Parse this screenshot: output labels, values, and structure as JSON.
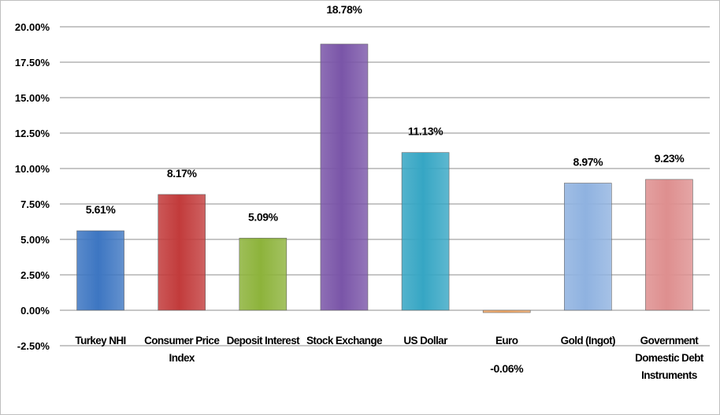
{
  "chart_data": {
    "type": "bar",
    "title": "",
    "xlabel": "",
    "ylabel": "",
    "categories": [
      [
        "Turkey NHI"
      ],
      [
        "Consumer Price",
        "Index"
      ],
      [
        "Deposit Interest"
      ],
      [
        "Stock Exchange"
      ],
      [
        "US Dollar"
      ],
      [
        "Euro"
      ],
      [
        "Gold (Ingot)"
      ],
      [
        "Government",
        "Domestic Debt",
        "Instruments"
      ]
    ],
    "values": [
      5.61,
      8.17,
      5.09,
      18.78,
      11.13,
      -0.06,
      8.97,
      9.23
    ],
    "data_labels": [
      "5.61%",
      "8.17%",
      "5.09%",
      "18.78%",
      "11.13%",
      "-0.06%",
      "8.97%",
      "9.23%"
    ],
    "ylim": [
      -2.5,
      20
    ],
    "y_ticks": [
      "20.00%",
      "17.50%",
      "15.00%",
      "12.50%",
      "10.00%",
      "7.50%",
      "5.00%",
      "2.50%",
      "0.00%",
      "-2.50%"
    ],
    "y_tick_values": [
      20,
      17.5,
      15,
      12.5,
      10,
      7.5,
      5,
      2.5,
      0,
      -2.5
    ],
    "grid": true,
    "legend": "none",
    "colors": [
      "#3d76c2",
      "#c23b3b",
      "#8db33b",
      "#7a55a8",
      "#36a6c4",
      "#f0a766",
      "#8fb2e0",
      "#de8f8f"
    ]
  }
}
